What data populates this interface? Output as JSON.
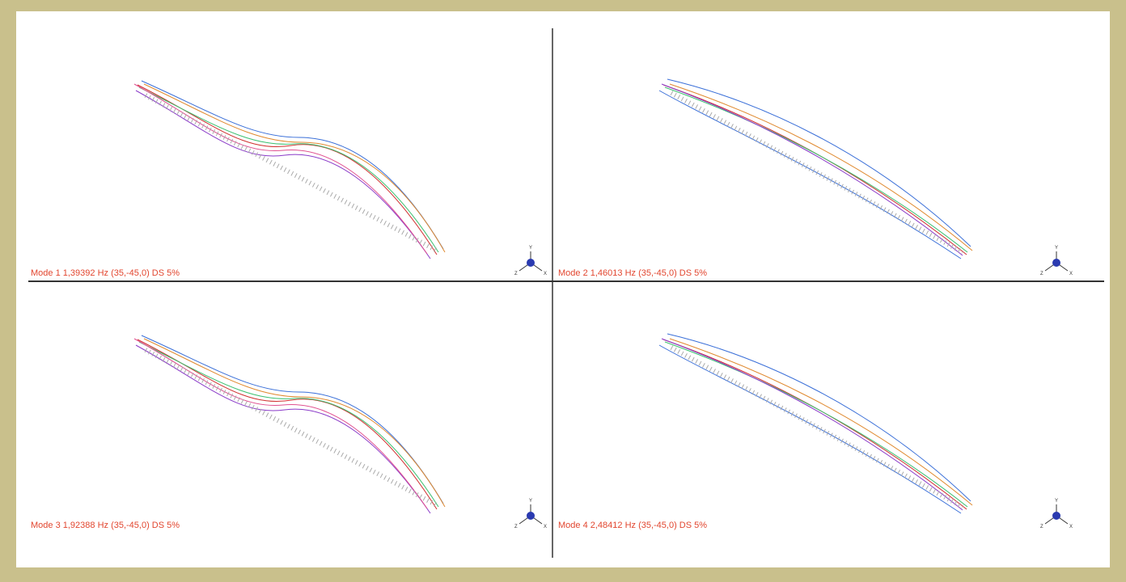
{
  "panels": [
    {
      "label": "Mode 1  1,39392 Hz  (35,-45,0)  DS 5%"
    },
    {
      "label": "Mode 2  1,46013 Hz  (35,-45,0)  DS 5%"
    },
    {
      "label": "Mode 3  1,92388 Hz  (35,-45,0)  DS 5%"
    },
    {
      "label": "Mode 4  2,48412 Hz  (35,-45,0)  DS 5%"
    }
  ],
  "triad": {
    "y": "Y",
    "z": "Z",
    "x": "X"
  }
}
